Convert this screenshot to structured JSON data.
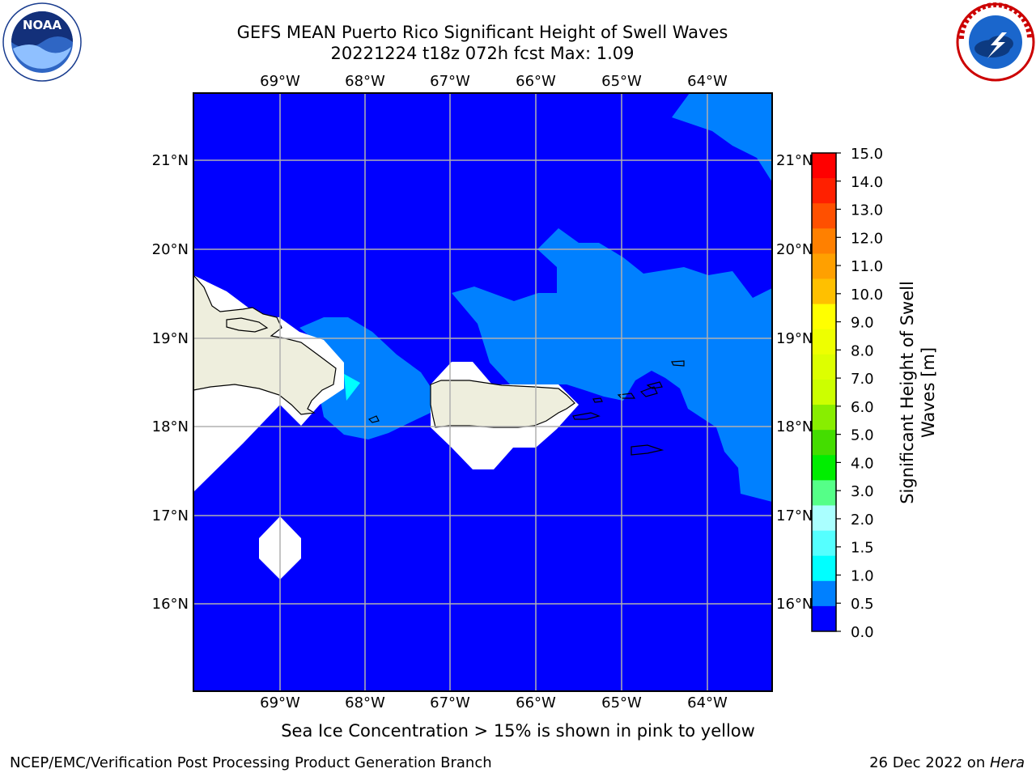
{
  "title_line1": "GEFS MEAN Puerto Rico Significant Height of Swell Waves",
  "title_line2": "20221224 t18z 072h fcst   Max: 1.09",
  "logos": {
    "left": {
      "name": "NOAA",
      "text": "NOAA",
      "ring_text": "NATIONAL OCEANIC AND ATMOSPHERIC ADMINISTRATION · U.S. DEPARTMENT OF COMMERCE"
    },
    "right": {
      "name": "National Weather Service",
      "ring_text": "NATIONAL WEATHER SERVICE"
    }
  },
  "map": {
    "lon_labels": [
      "69°W",
      "68°W",
      "67°W",
      "66°W",
      "65°W",
      "64°W"
    ],
    "lat_labels": [
      "21°N",
      "20°N",
      "19°N",
      "18°N",
      "17°N",
      "16°N"
    ],
    "ocean_color": "#0000ff",
    "swell_color": "#0080ff",
    "cyan_color": "#00ffff",
    "land_color": "#eeeedd"
  },
  "colorbar": {
    "title_line1": "Significant Height of Swell",
    "title_line2": "Waves [m]",
    "labels": [
      "15.0",
      "14.0",
      "13.0",
      "12.0",
      "11.0",
      "10.0",
      "9.0",
      "8.0",
      "7.0",
      "6.0",
      "5.0",
      "4.0",
      "3.0",
      "2.0",
      "1.5",
      "1.0",
      "0.5",
      "0.0"
    ],
    "colors_top_to_bottom": [
      "#ff0000",
      "#ff2000",
      "#ff5000",
      "#ff8000",
      "#ffa000",
      "#ffc000",
      "#ffff00",
      "#eeff00",
      "#ddff00",
      "#ccff00",
      "#88ee00",
      "#44dd00",
      "#00ee00",
      "#55ff88",
      "#aaffff",
      "#55ffff",
      "#00ffff",
      "#0080ff",
      "#0000ff"
    ]
  },
  "note": "Sea Ice Concentration > 15% is shown in pink to yellow",
  "footer_left": "NCEP/EMC/Verification Post Processing Product Generation Branch",
  "footer_date": "26 Dec 2022 on ",
  "footer_host": "Hera"
}
